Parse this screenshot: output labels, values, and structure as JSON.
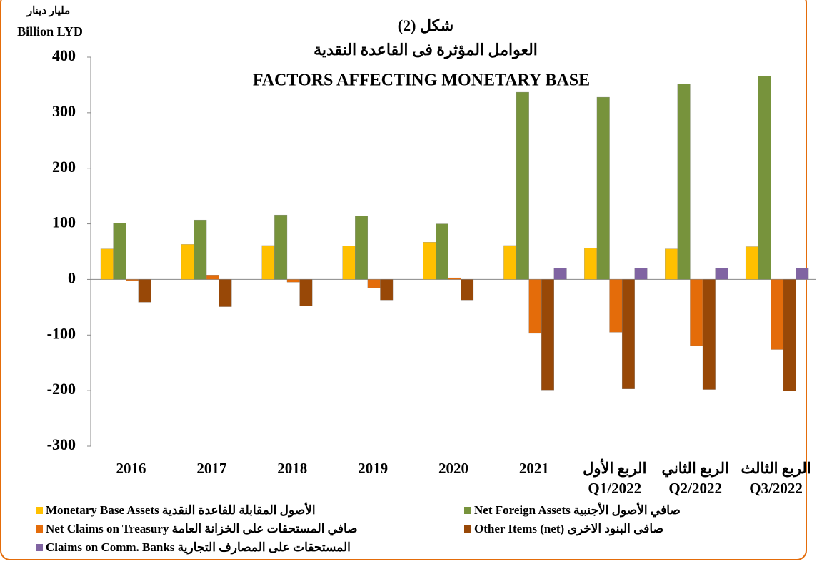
{
  "chart_data": {
    "type": "bar",
    "figure_label": "شكل (2)",
    "title_arabic": "العوامل المؤثرة فى القاعدة النقدية",
    "title": "FACTORS AFFECTING MONETARY BASE",
    "unit_label_arabic": "مليار دينار",
    "unit_label": "Billion LYD",
    "categories": [
      "2016",
      "2017",
      "2018",
      "2019",
      "2020",
      "2021",
      "الربع الأول\nQ1/2022",
      "الربع الثاني\nQ2/2022",
      "الربع الثالث\nQ3/2022"
    ],
    "series": [
      {
        "name": "Monetary Base Assets   الأصول المقابلة للقاعدة النقدية",
        "color": "#ffc000",
        "values": [
          55,
          63,
          61,
          60,
          67,
          61,
          56,
          55,
          59
        ]
      },
      {
        "name": "Net Foreign Assets صافي الأصول الأجنبية",
        "color": "#77933c",
        "values": [
          101,
          107,
          116,
          114,
          100,
          337,
          328,
          352,
          366
        ]
      },
      {
        "name": "Net Claims on Treasury صافي المستحقات على الخزانة العامة",
        "color": "#e46c0a",
        "values": [
          -2,
          8,
          -5,
          -15,
          3,
          -97,
          -95,
          -119,
          -126
        ]
      },
      {
        "name": "Other Items (net) صافى البنود الاخرى",
        "color": "#984807",
        "values": [
          -41,
          -49,
          -48,
          -37,
          -37,
          -199,
          -197,
          -198,
          -200
        ]
      },
      {
        "name": "Claims on Comm. Banks المستحقات على المصارف التجارية",
        "color": "#8064a2",
        "values": [
          null,
          null,
          null,
          null,
          null,
          20,
          20,
          20,
          20
        ]
      }
    ],
    "ylim": [
      -300,
      400
    ],
    "yticks": [
      -300,
      -200,
      -100,
      0,
      100,
      200,
      300,
      400
    ],
    "grid": false
  }
}
